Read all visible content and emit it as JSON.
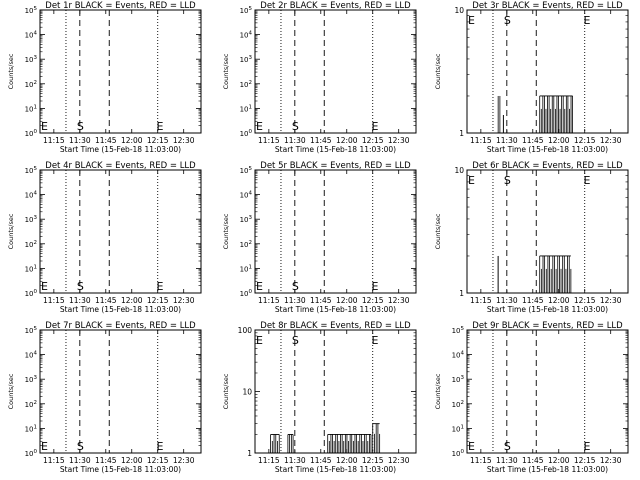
{
  "chart_data": [
    {
      "type": "line",
      "title": "Det 1r BLACK = Events, RED = LLD",
      "xlabel": "Start Time (15-Feb-18 11:03:00)",
      "ylabel": "Counts/sec",
      "xlim": [
        "11:07",
        "12:40"
      ],
      "ylim_exponent": [
        0,
        5
      ],
      "x_ticks": [
        "11:15",
        "11:30",
        "11:45",
        "12:00",
        "12:15",
        "12:30"
      ],
      "y_ticks": [
        "10^0",
        "10^1",
        "10^2",
        "10^3",
        "10^4",
        "10^5"
      ],
      "scale": "log",
      "markers": {
        "dotted": [
          "11:22",
          "12:15"
        ],
        "dashed": [
          "11:30",
          "11:47"
        ]
      },
      "marker_labels": [
        {
          "text": "E",
          "x": "11:08"
        },
        {
          "text": "S",
          "x": "11:30"
        },
        {
          "text": "E",
          "x": "12:16"
        }
      ],
      "marker_label_row": "bottom",
      "series": []
    },
    {
      "type": "line",
      "title": "Det 2r BLACK = Events, RED = LLD",
      "xlabel": "Start Time (15-Feb-18 11:03:00)",
      "ylabel": "Counts/sec",
      "xlim": [
        "11:07",
        "12:40"
      ],
      "ylim_exponent": [
        0,
        5
      ],
      "x_ticks": [
        "11:15",
        "11:30",
        "11:45",
        "12:00",
        "12:15",
        "12:30"
      ],
      "y_ticks": [
        "10^0",
        "10^1",
        "10^2",
        "10^3",
        "10^4",
        "10^5"
      ],
      "scale": "log",
      "markers": {
        "dotted": [
          "11:22",
          "12:15"
        ],
        "dashed": [
          "11:30",
          "11:47"
        ]
      },
      "marker_labels": [
        {
          "text": "E",
          "x": "11:08"
        },
        {
          "text": "S",
          "x": "11:30"
        },
        {
          "text": "E",
          "x": "12:16"
        }
      ],
      "marker_label_row": "bottom",
      "series": []
    },
    {
      "type": "line",
      "title": "Det 3r BLACK = Events, RED = LLD",
      "xlabel": "Start Time (15-Feb-18 11:03:00)",
      "ylabel": "Counts/sec",
      "xlim": [
        "11:07",
        "12:40"
      ],
      "ylim_exponent": [
        0,
        1
      ],
      "x_ticks": [
        "11:15",
        "11:30",
        "11:45",
        "12:00",
        "12:15",
        "12:30"
      ],
      "y_ticks": [
        "1",
        "10"
      ],
      "scale": "log",
      "markers": {
        "dotted": [
          "11:22",
          "12:15"
        ],
        "dashed": [
          "11:30",
          "11:47"
        ]
      },
      "marker_labels": [
        {
          "text": "E",
          "x": "11:08"
        },
        {
          "text": "S",
          "x": "11:30"
        },
        {
          "text": "E",
          "x": "12:16"
        }
      ],
      "marker_label_row": "top",
      "series": [
        {
          "color": "#000000",
          "bursts": [
            {
              "from": "11:25",
              "to": "11:26",
              "level": 2
            },
            {
              "from": "11:28",
              "to": "11:28",
              "level": 1.4
            },
            {
              "from": "11:49",
              "to": "12:08",
              "level": 2
            }
          ]
        }
      ]
    },
    {
      "type": "line",
      "title": "Det 4r BLACK = Events, RED = LLD",
      "xlabel": "Start Time (15-Feb-18 11:03:00)",
      "ylabel": "Counts/sec",
      "xlim": [
        "11:07",
        "12:40"
      ],
      "ylim_exponent": [
        0,
        5
      ],
      "x_ticks": [
        "11:15",
        "11:30",
        "11:45",
        "12:00",
        "12:15",
        "12:30"
      ],
      "y_ticks": [
        "10^0",
        "10^1",
        "10^2",
        "10^3",
        "10^4",
        "10^5"
      ],
      "scale": "log",
      "markers": {
        "dotted": [
          "11:22",
          "12:15"
        ],
        "dashed": [
          "11:30",
          "11:47"
        ]
      },
      "marker_labels": [
        {
          "text": "E",
          "x": "11:08"
        },
        {
          "text": "S",
          "x": "11:30"
        },
        {
          "text": "E",
          "x": "12:16"
        }
      ],
      "marker_label_row": "bottom",
      "series": []
    },
    {
      "type": "line",
      "title": "Det 5r BLACK = Events, RED = LLD",
      "xlabel": "Start Time (15-Feb-18 11:03:00)",
      "ylabel": "Counts/sec",
      "xlim": [
        "11:07",
        "12:40"
      ],
      "ylim_exponent": [
        0,
        5
      ],
      "x_ticks": [
        "11:15",
        "11:30",
        "11:45",
        "12:00",
        "12:15",
        "12:30"
      ],
      "y_ticks": [
        "10^0",
        "10^1",
        "10^2",
        "10^3",
        "10^4",
        "10^5"
      ],
      "scale": "log",
      "markers": {
        "dotted": [
          "11:22",
          "12:15"
        ],
        "dashed": [
          "11:30",
          "11:47"
        ]
      },
      "marker_labels": [
        {
          "text": "E",
          "x": "11:08"
        },
        {
          "text": "S",
          "x": "11:30"
        },
        {
          "text": "E",
          "x": "12:16"
        }
      ],
      "marker_label_row": "bottom",
      "series": []
    },
    {
      "type": "line",
      "title": "Det 6r BLACK = Events, RED = LLD",
      "xlabel": "Start Time (15-Feb-18 11:03:00)",
      "ylabel": "Counts/sec",
      "xlim": [
        "11:07",
        "12:40"
      ],
      "ylim_exponent": [
        0,
        1
      ],
      "x_ticks": [
        "11:15",
        "11:30",
        "11:45",
        "12:00",
        "12:15",
        "12:30"
      ],
      "y_ticks": [
        "1",
        "10"
      ],
      "scale": "log",
      "markers": {
        "dotted": [
          "11:22",
          "12:15"
        ],
        "dashed": [
          "11:30",
          "11:47"
        ]
      },
      "marker_labels": [
        {
          "text": "E",
          "x": "11:08"
        },
        {
          "text": "S",
          "x": "11:30"
        },
        {
          "text": "E",
          "x": "12:16"
        }
      ],
      "marker_label_row": "top",
      "series": [
        {
          "color": "#000000",
          "bursts": [
            {
              "from": "11:25",
              "to": "11:25",
              "level": 2
            },
            {
              "from": "11:49",
              "to": "12:07",
              "level": 2
            }
          ]
        }
      ]
    },
    {
      "type": "line",
      "title": "Det 7r BLACK = Events, RED = LLD",
      "xlabel": "Start Time (15-Feb-18 11:03:00)",
      "ylabel": "Counts/sec",
      "xlim": [
        "11:07",
        "12:40"
      ],
      "ylim_exponent": [
        0,
        5
      ],
      "x_ticks": [
        "11:15",
        "11:30",
        "11:45",
        "12:00",
        "12:15",
        "12:30"
      ],
      "y_ticks": [
        "10^0",
        "10^1",
        "10^2",
        "10^3",
        "10^4",
        "10^5"
      ],
      "scale": "log",
      "markers": {
        "dotted": [
          "11:22",
          "12:15"
        ],
        "dashed": [
          "11:30",
          "11:47"
        ]
      },
      "marker_labels": [
        {
          "text": "E",
          "x": "11:08"
        },
        {
          "text": "S",
          "x": "11:30"
        },
        {
          "text": "E",
          "x": "12:16"
        }
      ],
      "marker_label_row": "bottom",
      "series": []
    },
    {
      "type": "line",
      "title": "Det 8r BLACK = Events, RED = LLD",
      "xlabel": "Start Time (15-Feb-18 11:03:00)",
      "ylabel": "Counts/sec",
      "xlim": [
        "11:07",
        "12:40"
      ],
      "ylim_exponent": [
        0,
        2
      ],
      "x_ticks": [
        "11:15",
        "11:30",
        "11:45",
        "12:00",
        "12:15",
        "12:30"
      ],
      "y_ticks": [
        "1",
        "10",
        "100"
      ],
      "scale": "log",
      "markers": {
        "dotted": [
          "11:22",
          "12:15"
        ],
        "dashed": [
          "11:30",
          "11:47"
        ]
      },
      "marker_labels": [
        {
          "text": "E",
          "x": "11:08"
        },
        {
          "text": "S",
          "x": "11:30"
        },
        {
          "text": "E",
          "x": "12:16"
        }
      ],
      "marker_label_row": "top",
      "series": [
        {
          "color": "#000000",
          "bursts": [
            {
              "from": "11:16",
              "to": "11:21",
              "level": 2
            },
            {
              "from": "11:26",
              "to": "11:29",
              "level": 2
            },
            {
              "from": "11:49",
              "to": "12:14",
              "level": 2
            },
            {
              "from": "12:15",
              "to": "12:19",
              "level": 3
            }
          ]
        }
      ]
    },
    {
      "type": "line",
      "title": "Det 9r BLACK = Events, RED = LLD",
      "xlabel": "Start Time (15-Feb-18 11:03:00)",
      "ylabel": "Counts/sec",
      "xlim": [
        "11:07",
        "12:40"
      ],
      "ylim_exponent": [
        0,
        5
      ],
      "x_ticks": [
        "11:15",
        "11:30",
        "11:45",
        "12:00",
        "12:15",
        "12:30"
      ],
      "y_ticks": [
        "10^0",
        "10^1",
        "10^2",
        "10^3",
        "10^4",
        "10^5"
      ],
      "scale": "log",
      "markers": {
        "dotted": [
          "11:22",
          "12:15"
        ],
        "dashed": [
          "11:30",
          "11:47"
        ]
      },
      "marker_labels": [
        {
          "text": "E",
          "x": "11:08"
        },
        {
          "text": "S",
          "x": "11:30"
        },
        {
          "text": "E",
          "x": "12:16"
        }
      ],
      "marker_label_row": "bottom",
      "series": []
    }
  ]
}
